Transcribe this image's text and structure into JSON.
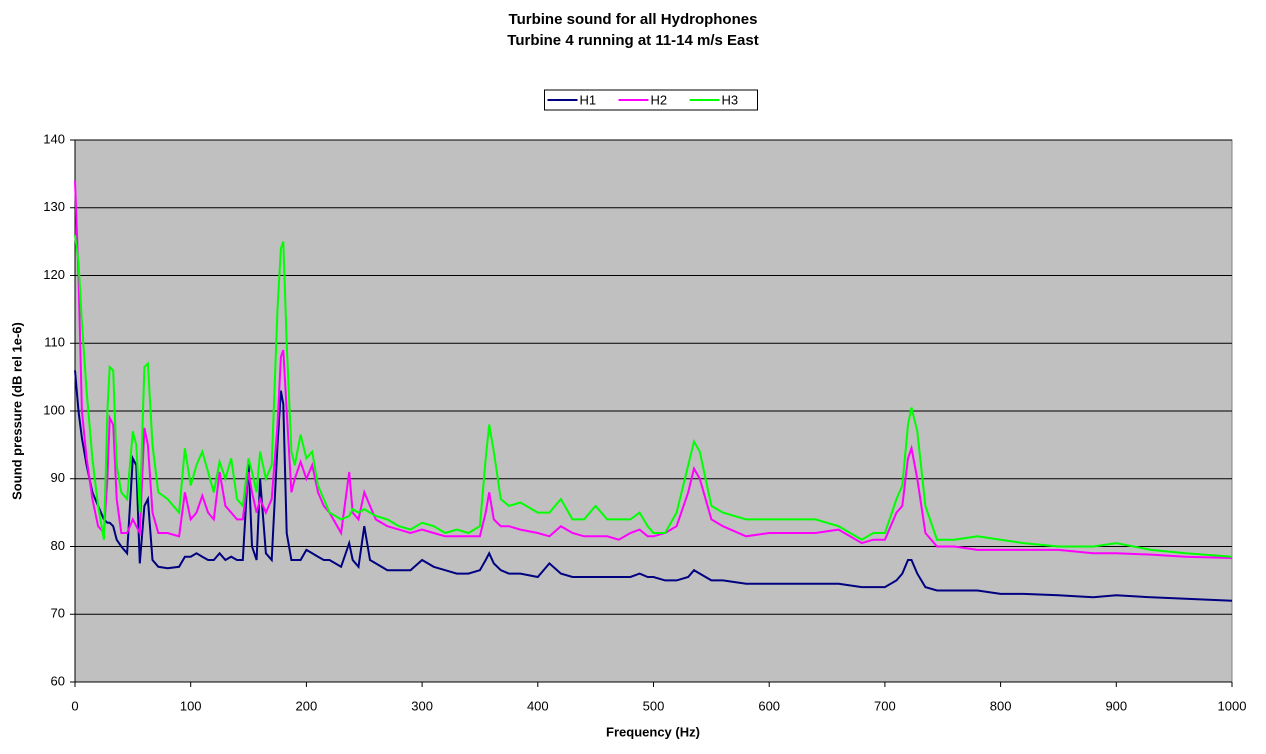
{
  "chart_data": {
    "type": "line",
    "title": "Turbine sound for all Hydrophones",
    "subtitle": "Turbine 4 running at 11-14 m/s East",
    "x_label": "Frequency (Hz)",
    "y_label": "Sound pressure (dB rel 1e-6)",
    "x": [
      0,
      3,
      6,
      10,
      15,
      20,
      25,
      28,
      30,
      33,
      36,
      40,
      45,
      50,
      53,
      56,
      60,
      63,
      67,
      72,
      80,
      90,
      95,
      100,
      105,
      110,
      115,
      120,
      125,
      130,
      135,
      140,
      145,
      150,
      153,
      157,
      160,
      165,
      170,
      175,
      178,
      180,
      183,
      187,
      190,
      195,
      200,
      205,
      210,
      215,
      220,
      230,
      237,
      240,
      245,
      250,
      255,
      260,
      270,
      280,
      290,
      300,
      310,
      320,
      330,
      340,
      350,
      355,
      358,
      362,
      368,
      375,
      385,
      400,
      410,
      420,
      430,
      440,
      450,
      460,
      470,
      480,
      488,
      495,
      500,
      510,
      520,
      530,
      535,
      540,
      550,
      560,
      580,
      600,
      620,
      640,
      660,
      680,
      690,
      700,
      710,
      715,
      720,
      723,
      728,
      735,
      745,
      760,
      780,
      800,
      820,
      850,
      880,
      900,
      930,
      960,
      1000
    ],
    "series": [
      {
        "name": "H1",
        "color": "#000080",
        "values": [
          106,
          100,
          96,
          92,
          88,
          86,
          84,
          83.5,
          83.5,
          83,
          81,
          80,
          79,
          93,
          92,
          77.5,
          86,
          87,
          78,
          77,
          76.8,
          77,
          78.5,
          78.5,
          79,
          78.5,
          78,
          78,
          79,
          78,
          78.5,
          78,
          78,
          92.5,
          80,
          78,
          90,
          79,
          78,
          95,
          103,
          101,
          82,
          78,
          78,
          78,
          79.5,
          79,
          78.5,
          78,
          78,
          77,
          80.5,
          78,
          77,
          83,
          78,
          77.5,
          76.5,
          76.5,
          76.5,
          78,
          77,
          76.5,
          76,
          76,
          76.5,
          78,
          79,
          77.5,
          76.5,
          76,
          76,
          75.5,
          77.5,
          76,
          75.5,
          75.5,
          75.5,
          75.5,
          75.5,
          75.5,
          76,
          75.5,
          75.5,
          75,
          75,
          75.5,
          76.5,
          76,
          75,
          75,
          74.5,
          74.5,
          74.5,
          74.5,
          74.5,
          74,
          74,
          74,
          75,
          76,
          78,
          78,
          76,
          74,
          73.5,
          73.5,
          73.5,
          73,
          73,
          72.8,
          72.5,
          72.8,
          72.5,
          72.3,
          72
        ]
      },
      {
        "name": "H2",
        "color": "#ff00ff",
        "values": [
          134,
          120,
          100,
          93,
          87,
          83,
          82,
          90,
          99,
          98,
          87,
          82,
          82,
          84,
          83,
          82,
          97.5,
          95,
          85,
          82,
          82,
          81.5,
          88,
          84,
          85,
          87.5,
          85,
          84,
          91,
          86,
          85,
          84,
          84,
          91,
          88,
          85,
          87,
          85,
          87,
          98,
          108,
          109,
          100,
          88,
          90,
          92.5,
          90,
          92,
          88,
          86,
          85,
          82,
          91,
          85,
          84,
          88,
          86,
          84,
          83,
          82.5,
          82,
          82.5,
          82,
          81.5,
          81.5,
          81.5,
          81.5,
          85,
          88,
          84,
          83,
          83,
          82.5,
          82,
          81.5,
          83,
          82,
          81.5,
          81.5,
          81.5,
          81,
          82,
          82.5,
          81.5,
          81.5,
          82,
          83,
          88,
          91.5,
          90,
          84,
          83,
          81.5,
          82,
          82,
          82,
          82.5,
          80.5,
          81,
          81,
          85,
          86,
          93,
          94.5,
          90,
          82,
          80,
          80,
          79.5,
          79.5,
          79.5,
          79.5,
          79,
          79,
          78.8,
          78.5,
          78.3
        ]
      },
      {
        "name": "H3",
        "color": "#00ff00",
        "values": [
          126,
          122,
          113,
          103,
          93,
          86,
          81,
          100,
          106.5,
          106,
          92,
          88,
          87,
          97,
          95,
          85,
          106.5,
          107,
          95,
          88,
          87,
          85,
          94.5,
          89,
          92,
          94,
          91,
          88,
          92.5,
          90,
          93,
          87,
          86,
          93,
          91,
          88,
          94,
          90,
          92,
          115,
          124,
          125,
          110,
          94,
          92,
          96.5,
          93,
          94,
          89,
          87,
          85,
          84,
          84.5,
          85.5,
          85,
          85.5,
          85,
          84.5,
          84,
          83,
          82.5,
          83.5,
          83,
          82,
          82.5,
          82,
          83,
          93,
          98,
          94,
          87,
          86,
          86.5,
          85,
          85,
          87,
          84,
          84,
          86,
          84,
          84,
          84,
          85,
          83,
          82,
          82,
          85,
          92,
          95.5,
          94,
          86,
          85,
          84,
          84,
          84,
          84,
          83,
          81,
          82,
          82,
          87,
          89,
          98,
          100.5,
          97,
          86,
          81,
          81,
          81.5,
          81,
          80.5,
          80,
          80,
          80.5,
          79.5,
          79,
          78.5
        ]
      }
    ],
    "xlim": [
      0,
      1000
    ],
    "ylim": [
      60,
      140
    ],
    "xticks": [
      0,
      100,
      200,
      300,
      400,
      500,
      600,
      700,
      800,
      900,
      1000
    ],
    "yticks": [
      60,
      70,
      80,
      90,
      100,
      110,
      120,
      130,
      140
    ],
    "grid": true,
    "legend": "top"
  }
}
